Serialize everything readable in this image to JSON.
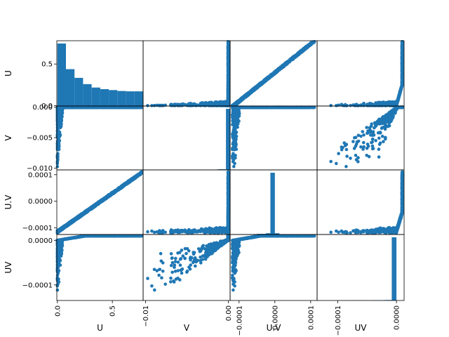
{
  "chart_data": {
    "type": "scatter_matrix",
    "variables": [
      "U",
      "V",
      "U.V",
      "UV"
    ],
    "axis_labels": [
      "U",
      "V",
      "U.V",
      "UV"
    ],
    "color": "#1f77b4",
    "grid": false,
    "ranges": {
      "U": [
        -0.005,
        0.78
      ],
      "V": [
        -0.0103,
        0.0002
      ],
      "U.V": [
        -0.000125,
        0.000118
      ],
      "UV": [
        -0.000135,
        1.3e-05
      ]
    },
    "tick_labels": {
      "U": {
        "values": [
          0.0,
          0.5
        ],
        "labels": [
          "0.0",
          "0.5"
        ]
      },
      "V": {
        "values": [
          0.0,
          -0.005,
          -0.01
        ],
        "labels": [
          "0.000",
          "−0.005",
          "−0.010"
        ],
        "x_labels": [
          "−0.01",
          "0.00"
        ],
        "x_values": [
          -0.01,
          0.0
        ]
      },
      "U.V": {
        "values": [
          0.0001,
          0.0,
          -0.0001
        ],
        "labels": [
          "0.0001",
          "0.0000",
          "−0.0001"
        ],
        "x_labels": [
          "−0.0001",
          "0.0000",
          "0.0001"
        ],
        "x_values": [
          -0.0001,
          0.0,
          0.0001
        ]
      },
      "UV": {
        "values": [
          0.0,
          -0.0001
        ],
        "labels": [
          "0.0000",
          "−0.0001"
        ],
        "x_labels": [
          "−0.0001",
          "0.0000"
        ],
        "x_values": [
          -0.0001,
          0.0
        ]
      }
    },
    "histograms": {
      "U": {
        "edges": [
          0.0,
          0.078,
          0.156,
          0.234,
          0.312,
          0.39,
          0.468,
          0.546,
          0.624,
          0.702,
          0.78
        ],
        "counts": [
          1000,
          590,
          450,
          350,
          295,
          270,
          255,
          240,
          235,
          235
        ]
      },
      "V": {
        "edges": [
          -0.0103,
          -0.0093,
          -0.0083,
          -0.0073,
          -0.0063,
          -0.0053,
          -0.0043,
          -0.0033,
          -0.0023,
          -0.0013,
          -0.0003,
          0.0002
        ],
        "counts": [
          0,
          0,
          0,
          0,
          0,
          0,
          0,
          0,
          0,
          10,
          1000
        ]
      },
      "U.V": {
        "edges": [
          -0.000125,
          -0.0001,
          -7.5e-05,
          -5e-05,
          -2.5e-05,
          -1.25e-05,
          0.0,
          1.25e-05,
          2.5e-05,
          5e-05,
          0.000118
        ],
        "counts": [
          5,
          5,
          5,
          10,
          20,
          1000,
          20,
          5,
          5,
          5
        ]
      },
      "UV": {
        "edges": [
          -0.000135,
          -0.00011,
          -8.5e-05,
          -6e-05,
          -4e-05,
          -2e-05,
          -8e-06,
          0.0,
          1.3e-05
        ],
        "counts": [
          0,
          2,
          3,
          3,
          5,
          8,
          1000,
          0
        ]
      }
    }
  }
}
